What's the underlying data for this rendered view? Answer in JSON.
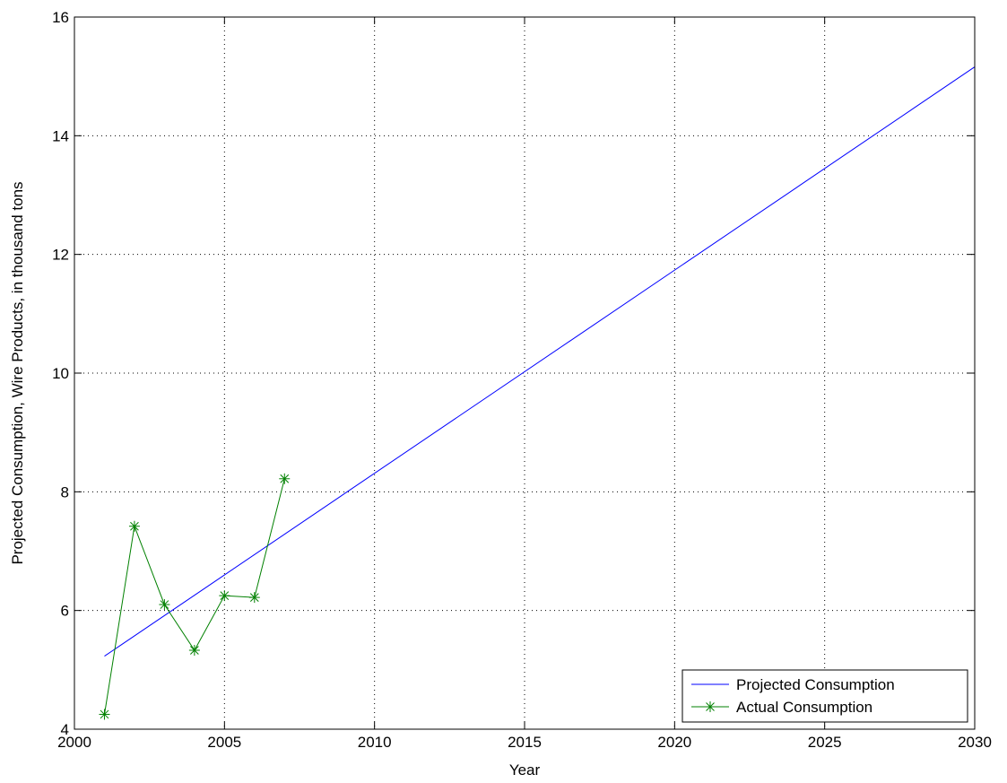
{
  "chart_data": {
    "type": "line",
    "title": "",
    "xlabel": "Year",
    "ylabel": "Projected Consumption, Wire Products, in thousand tons",
    "xlim": [
      2000,
      2030
    ],
    "ylim": [
      4,
      16
    ],
    "xticks": [
      2000,
      2005,
      2010,
      2015,
      2020,
      2025,
      2030
    ],
    "yticks": [
      4,
      6,
      8,
      10,
      12,
      14,
      16
    ],
    "grid": true,
    "legend_position": "bottom-right",
    "series": [
      {
        "name": "Projected Consumption",
        "color": "#0000ff",
        "marker": "none",
        "x": [
          2001,
          2030
        ],
        "y": [
          5.23,
          15.16
        ]
      },
      {
        "name": "Actual Consumption",
        "color": "#008000",
        "marker": "asterisk",
        "x": [
          2001,
          2002,
          2003,
          2004,
          2005,
          2006,
          2007
        ],
        "y": [
          4.25,
          7.42,
          6.1,
          5.33,
          6.25,
          6.22,
          8.22
        ]
      }
    ]
  }
}
